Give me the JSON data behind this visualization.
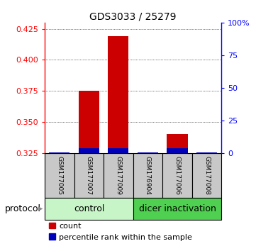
{
  "title": "GDS3033 / 25279",
  "samples": [
    "GSM177005",
    "GSM177007",
    "GSM177009",
    "GSM176904",
    "GSM177006",
    "GSM177008"
  ],
  "red_values": [
    0.325,
    0.375,
    0.419,
    0.325,
    0.34,
    0.325
  ],
  "blue_values": [
    0.3255,
    0.3285,
    0.3285,
    0.3255,
    0.3285,
    0.3255
  ],
  "ylim": [
    0.325,
    0.43
  ],
  "yticks_left": [
    0.325,
    0.35,
    0.375,
    0.4,
    0.425
  ],
  "yticks_right_labels": [
    "0",
    "25",
    "50",
    "75",
    "100%"
  ],
  "bar_width": 0.7,
  "red_color": "#cc0000",
  "blue_color": "#0000bb",
  "group_label_color_control": "#c8f5c8",
  "group_label_color_dicer": "#50d050",
  "sample_bg_color": "#c8c8c8",
  "title_fontsize": 10,
  "tick_fontsize": 8,
  "label_fontsize": 9,
  "legend_fontsize": 8,
  "protocol_fontsize": 9
}
